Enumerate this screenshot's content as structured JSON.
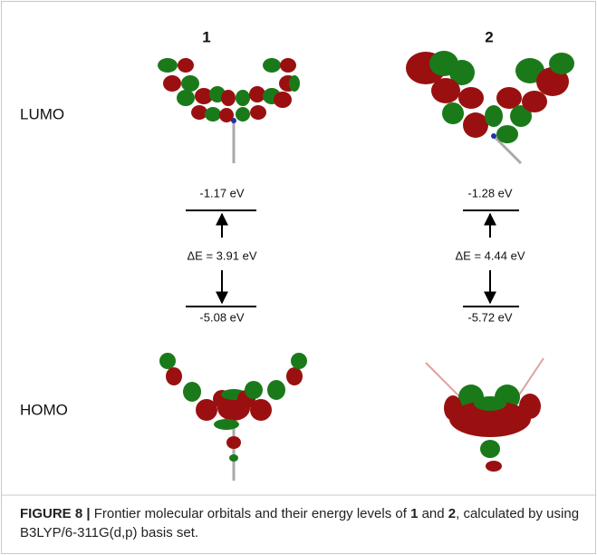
{
  "figure": {
    "columns": [
      "1",
      "2"
    ],
    "rows": [
      "LUMO",
      "HOMO"
    ],
    "levels": [
      {
        "lumo": "-1.17 eV",
        "gap": "ΔE = 3.91 eV",
        "homo": "-5.08 eV"
      },
      {
        "lumo": "-1.28 eV",
        "gap": "ΔE = 4.44 eV",
        "homo": "-5.72 eV"
      }
    ]
  },
  "caption": {
    "label": "FIGURE 8 |",
    "text1": "Frontier molecular orbitals and their energy levels of",
    "bold1": "1",
    "text2": "and",
    "bold2": "2",
    "text3": ", calculated by using B3LYP/6-311G(d,p) basis set."
  }
}
